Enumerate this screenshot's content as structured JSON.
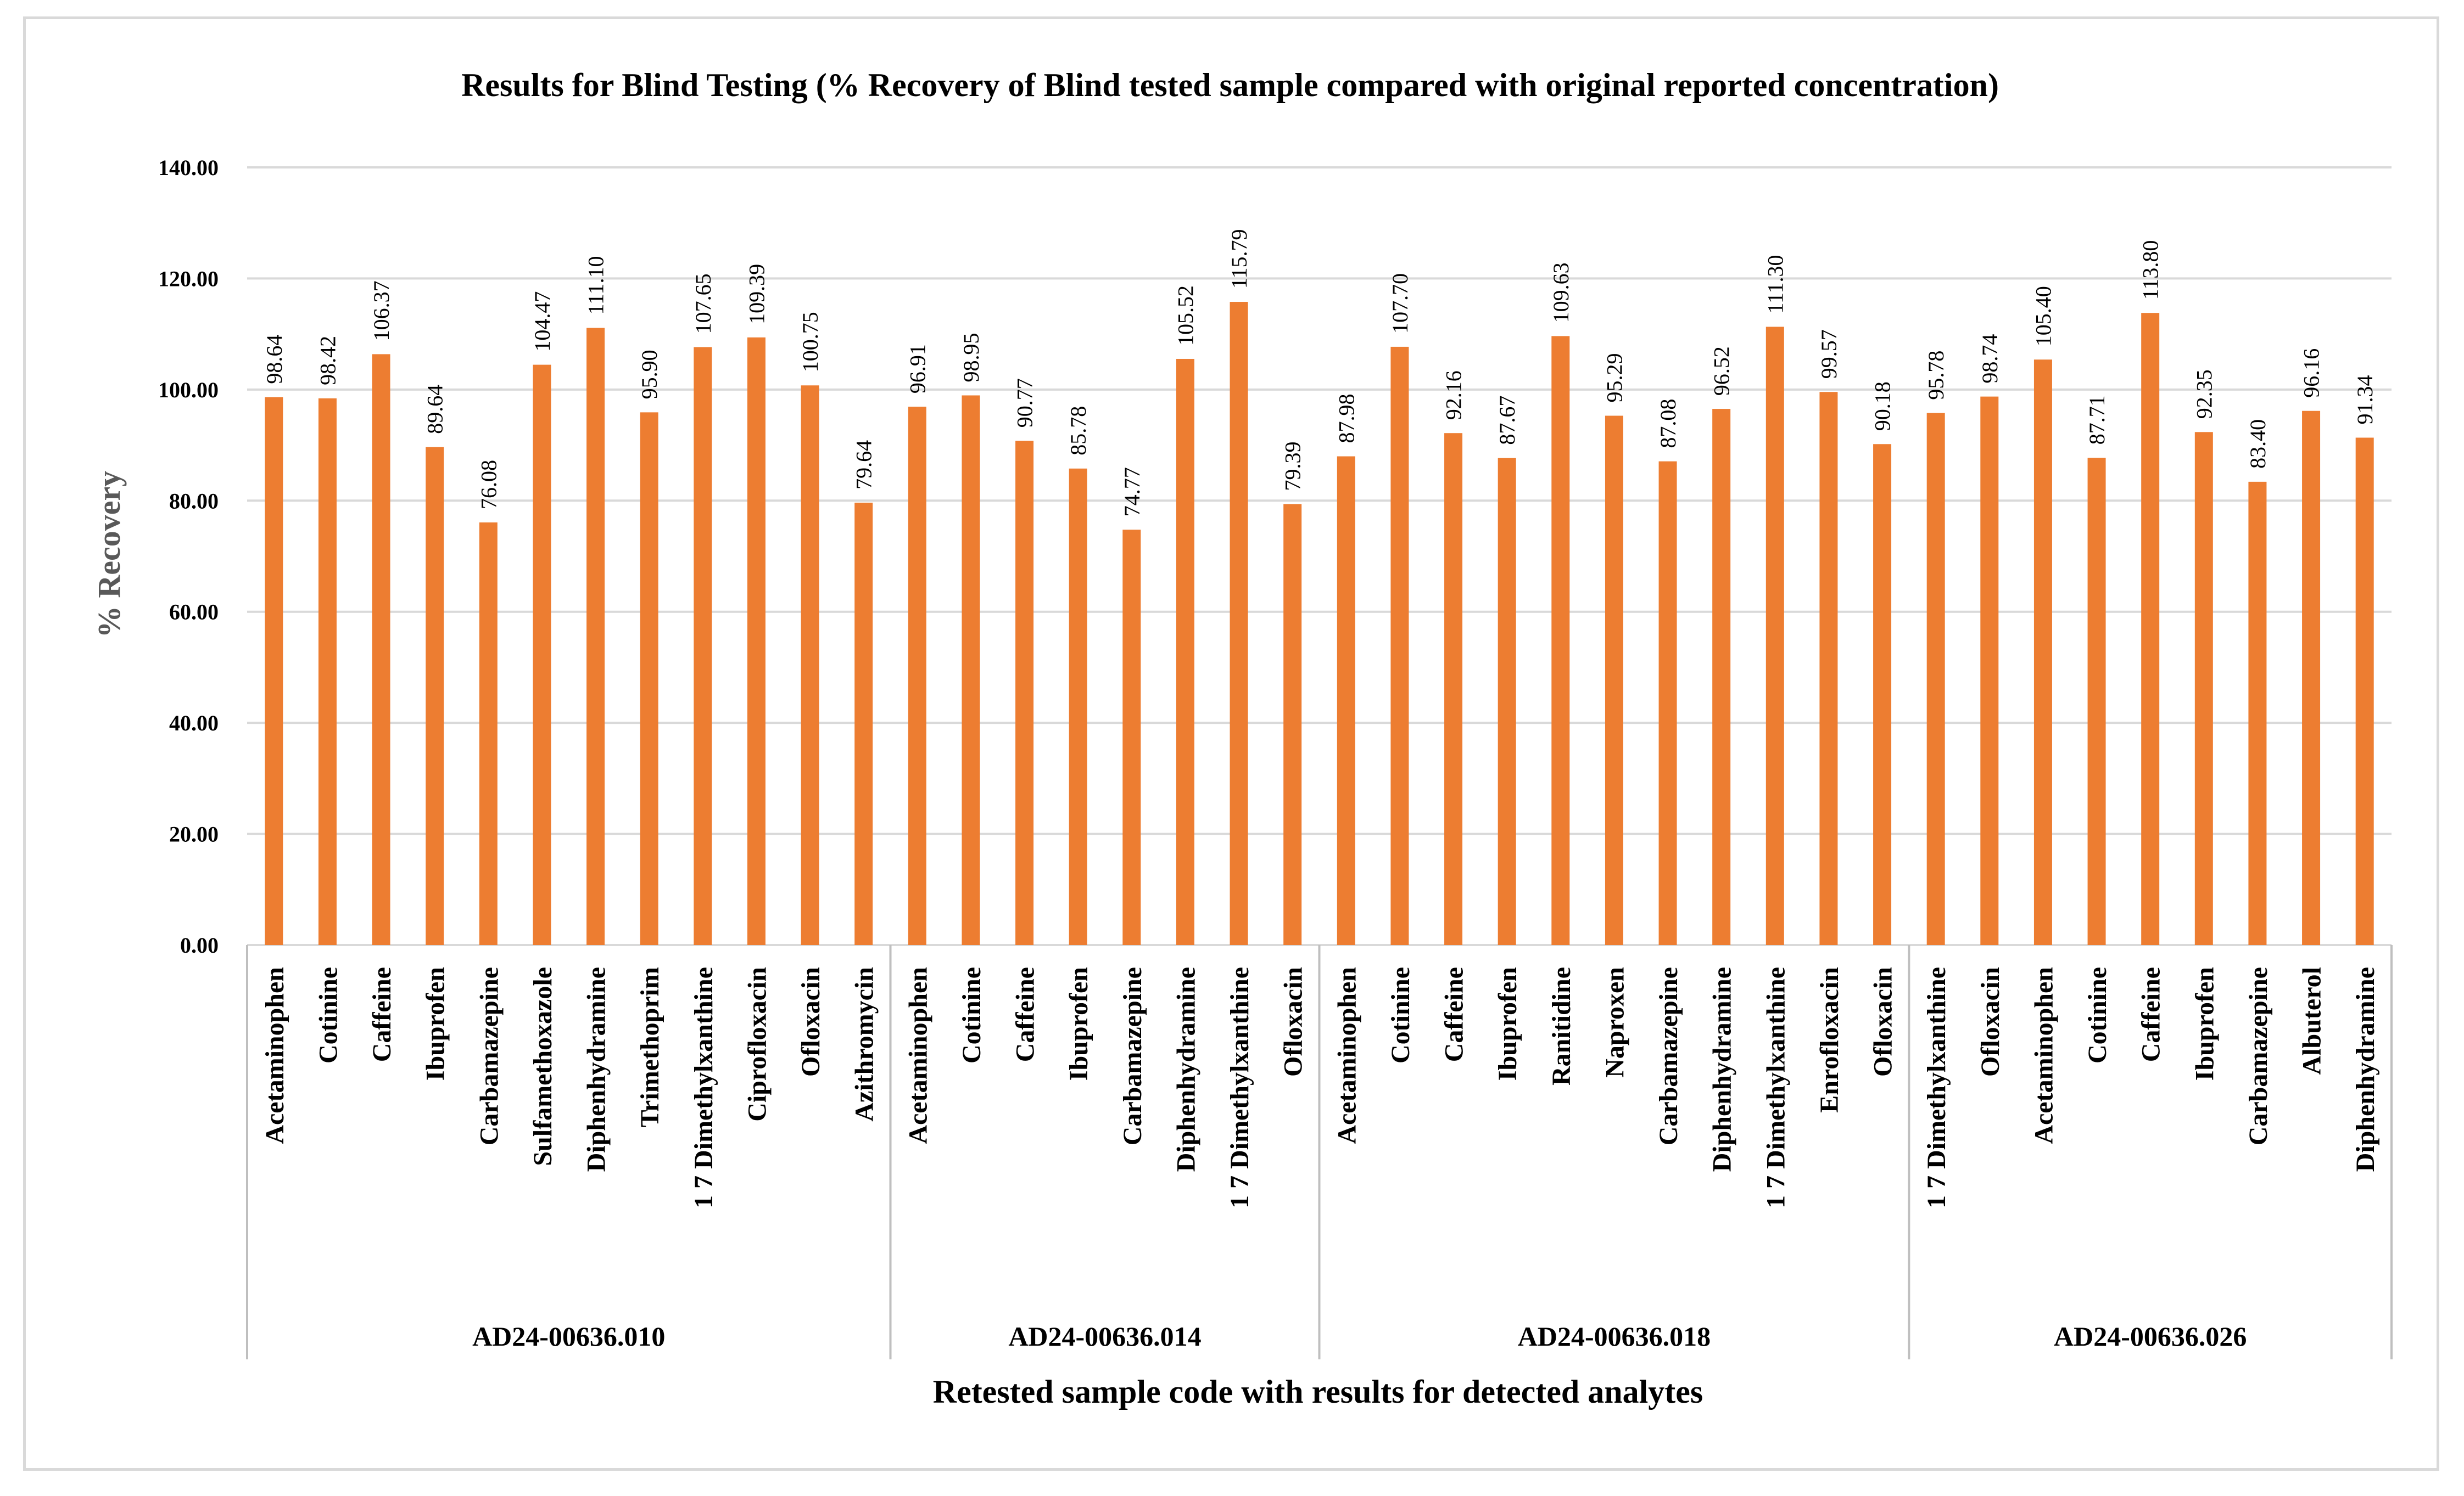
{
  "chart_data": {
    "type": "bar",
    "title": "Results for Blind Testing (% Recovery of Blind tested sample compared with original reported concentration)",
    "xlabel": "Retested sample code with results for detected analytes",
    "ylabel": "% Recovery",
    "ylim": [
      0,
      140
    ],
    "yticks": [
      "0.00",
      "20.00",
      "40.00",
      "60.00",
      "80.00",
      "100.00",
      "120.00",
      "140.00"
    ],
    "grid": true,
    "bar_color": "#ed7d31",
    "groups": [
      {
        "name": "AD24-00636.010",
        "categories": [
          "Acetaminophen",
          "Cotinine",
          "Caffeine",
          "Ibuprofen",
          "Carbamazepine",
          "Sulfamethoxazole",
          "Diphenhydramine",
          "Trimethoprim",
          "1 7 Dimethylxanthine",
          "Ciprofloxacin",
          "Ofloxacin",
          "Azithromycin"
        ],
        "values": [
          98.64,
          98.42,
          106.37,
          89.64,
          76.08,
          104.47,
          111.1,
          95.9,
          107.65,
          109.39,
          100.75,
          79.64
        ],
        "labels": [
          "98.64",
          "98.42",
          "106.37",
          "89.64",
          "76.08",
          "104.47",
          "111.10",
          "95.90",
          "107.65",
          "109.39",
          "100.75",
          "79.64"
        ]
      },
      {
        "name": "AD24-00636.014",
        "categories": [
          "Acetaminophen",
          "Cotinine",
          "Caffeine",
          "Ibuprofen",
          "Carbamazepine",
          "Diphenhydramine",
          "1 7 Dimethylxanthine",
          "Ofloxacin"
        ],
        "values": [
          96.91,
          98.95,
          90.77,
          85.78,
          74.77,
          105.52,
          115.79,
          79.39
        ],
        "labels": [
          "96.91",
          "98.95",
          "90.77",
          "85.78",
          "74.77",
          "105.52",
          "115.79",
          "79.39"
        ]
      },
      {
        "name": "AD24-00636.018",
        "categories": [
          "Acetaminophen",
          "Cotinine",
          "Caffeine",
          "Ibuprofen",
          "Ranitidine",
          "Naproxen",
          "Carbamazepine",
          "Diphenhydramine",
          "1 7 Dimethylxanthine",
          "Enrofloxacin",
          "Ofloxacin"
        ],
        "values": [
          87.98,
          107.7,
          92.16,
          87.67,
          109.63,
          95.29,
          87.08,
          96.52,
          111.3,
          99.57,
          90.18
        ],
        "labels": [
          "87.98",
          "107.70",
          "92.16",
          "87.67",
          "109.63",
          "95.29",
          "87.08",
          "96.52",
          "111.30",
          "99.57",
          "90.18"
        ]
      },
      {
        "name": "AD24-00636.026",
        "categories": [
          "1 7 Dimethylxanthine",
          "Ofloxacin",
          "Acetaminophen",
          "Cotinine",
          "Caffeine",
          "Ibuprofen",
          "Carbamazepine",
          "Albuterol",
          "Diphenhydramine"
        ],
        "values": [
          95.78,
          98.74,
          105.4,
          87.71,
          113.8,
          92.35,
          83.4,
          96.16,
          91.34
        ],
        "labels": [
          "95.78",
          "98.74",
          "105.40",
          "87.71",
          "113.80",
          "92.35",
          "83.40",
          "96.16",
          "91.34"
        ]
      }
    ]
  }
}
